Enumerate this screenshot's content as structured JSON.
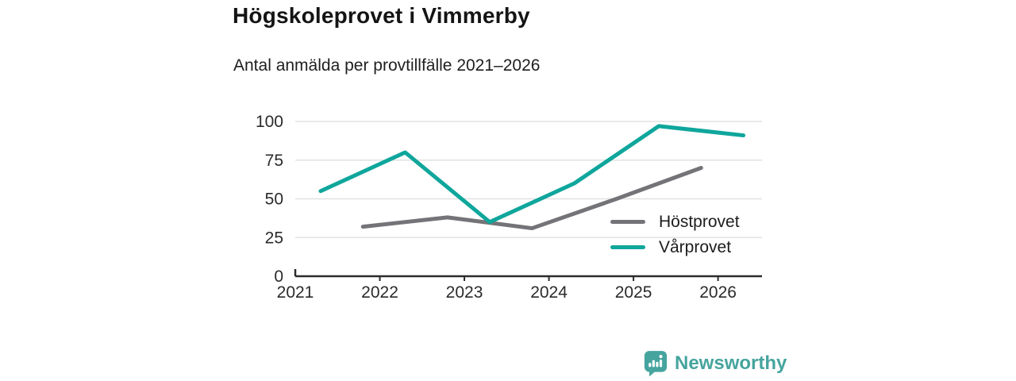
{
  "header": {
    "title": "Högskoleprovet i Vimmerby",
    "subtitle": "Antal anmälda per provtillfälle 2021–2026"
  },
  "chart_data": {
    "type": "line",
    "title": "Högskoleprovet i Vimmerby",
    "subtitle": "Antal anmälda per provtillfälle 2021–2026",
    "xlabel": "",
    "ylabel": "",
    "x_ticks": [
      2021,
      2022,
      2023,
      2024,
      2025,
      2026
    ],
    "y_ticks": [
      0,
      25,
      50,
      75,
      100
    ],
    "xlim": [
      2021,
      2026.52
    ],
    "ylim": [
      0,
      100
    ],
    "grid": "horizontal",
    "legend_position": "inside-right",
    "series": [
      {
        "name": "Höstprovet",
        "color": "#747478",
        "points": [
          [
            2021.8,
            32
          ],
          [
            2022.8,
            38
          ],
          [
            2023.8,
            31
          ],
          [
            2024.8,
            50
          ],
          [
            2025.8,
            70
          ]
        ]
      },
      {
        "name": "Vårprovet",
        "color": "#0fa69c",
        "points": [
          [
            2021.3,
            55
          ],
          [
            2022.3,
            80
          ],
          [
            2023.3,
            35
          ],
          [
            2024.3,
            60
          ],
          [
            2025.3,
            97
          ],
          [
            2026.3,
            91
          ]
        ]
      }
    ],
    "axis_color": "#2b2b2b",
    "grid_color": "#e2e2e2",
    "tick_label_color": "#2b2b2b"
  },
  "branding": {
    "name": "Newsworthy",
    "color": "#46a49e"
  }
}
